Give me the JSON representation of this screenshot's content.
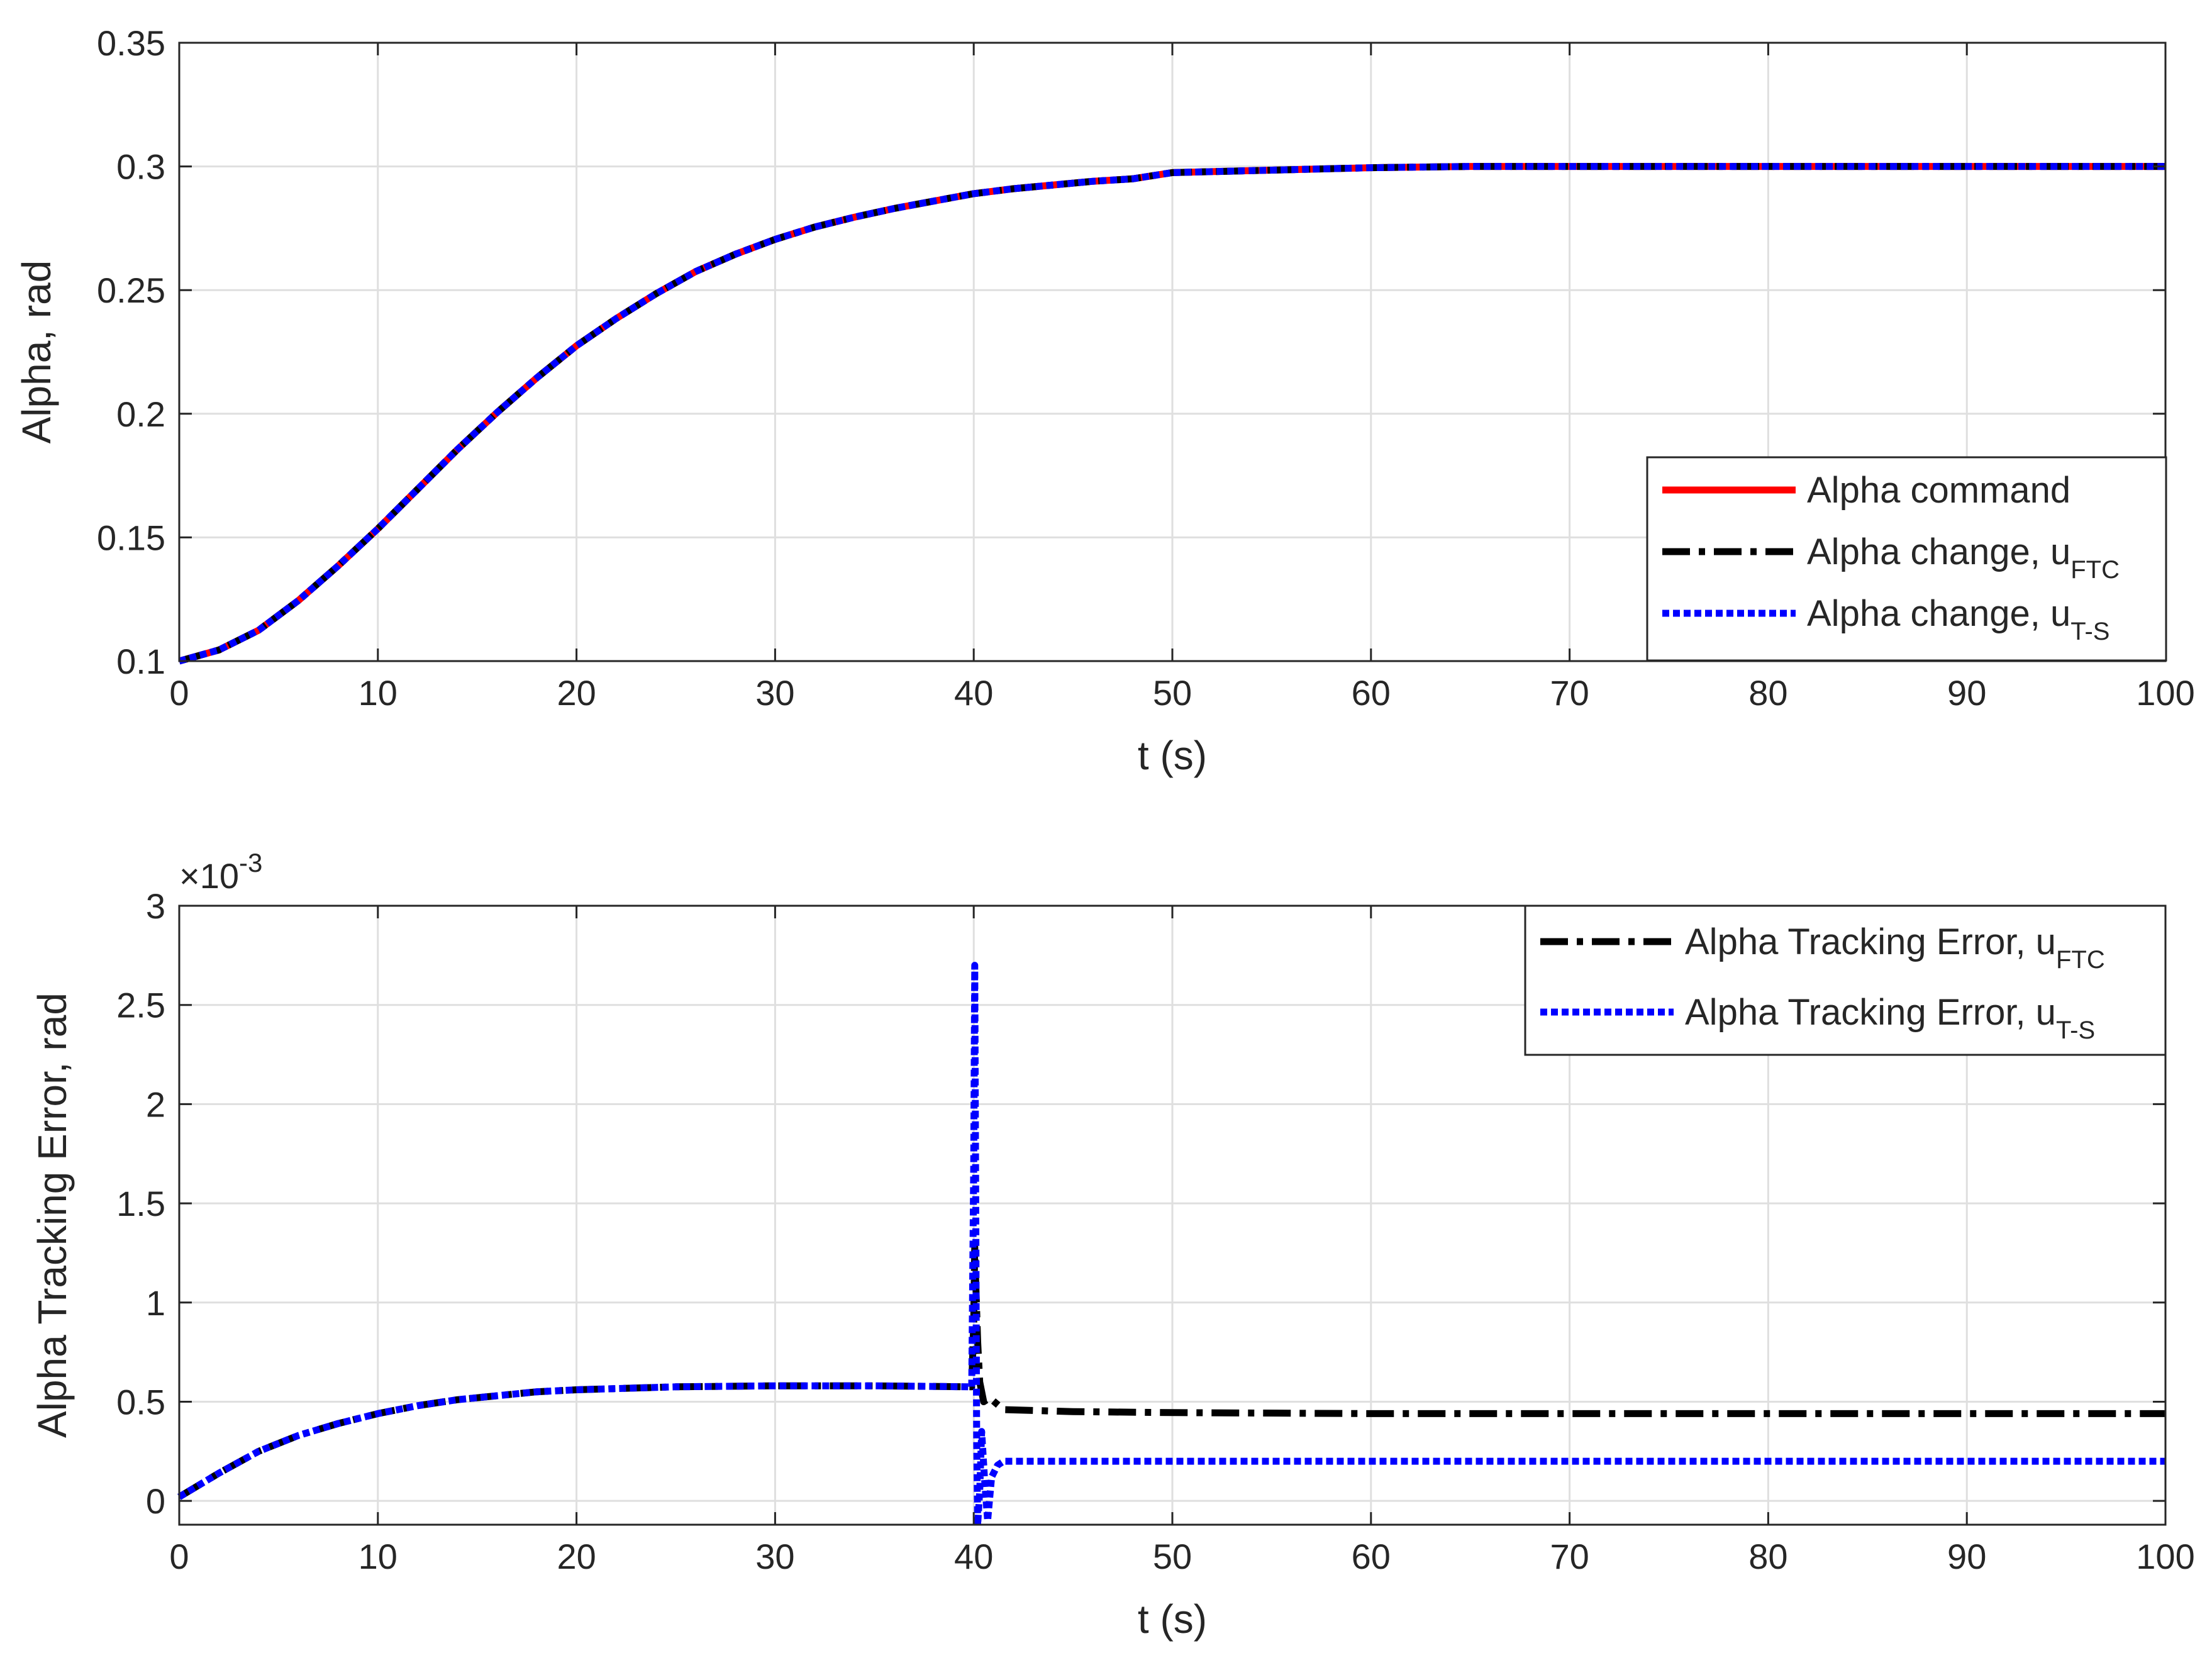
{
  "chart_data": [
    {
      "type": "line",
      "xlabel": "t (s)",
      "ylabel": "Alpha, rad",
      "xlim": [
        0,
        100
      ],
      "ylim": [
        0.1,
        0.35
      ],
      "xticks": [
        "0",
        "10",
        "20",
        "30",
        "40",
        "50",
        "60",
        "70",
        "80",
        "90",
        "100"
      ],
      "yticks": [
        "0.1",
        "0.15",
        "0.2",
        "0.25",
        "0.3",
        "0.35"
      ],
      "grid": true,
      "legend_position": "bottom-right",
      "x": [
        0,
        2,
        4,
        6,
        8,
        10,
        12,
        14,
        16,
        18,
        20,
        22,
        24,
        26,
        28,
        30,
        32,
        34,
        36,
        38,
        40,
        42,
        44,
        46,
        48,
        50,
        55,
        60,
        65,
        70,
        75,
        80,
        85,
        90,
        95,
        100
      ],
      "series": [
        {
          "name": "Alpha command",
          "name_main": "Alpha command",
          "name_sub": "",
          "color": "#ff0000",
          "style": "solid",
          "values": [
            0.1,
            0.1045,
            0.1125,
            0.1245,
            0.1385,
            0.1535,
            0.1695,
            0.1855,
            0.2005,
            0.2145,
            0.2275,
            0.2385,
            0.2485,
            0.2575,
            0.2645,
            0.2705,
            0.2755,
            0.2795,
            0.283,
            0.286,
            0.289,
            0.291,
            0.2925,
            0.294,
            0.295,
            0.2975,
            0.2985,
            0.2995,
            0.3,
            0.3,
            0.3,
            0.3,
            0.3,
            0.3,
            0.3,
            0.3
          ]
        },
        {
          "name": "Alpha change, uFTC",
          "name_main": "Alpha change, u",
          "name_sub": "FTC",
          "color": "#000000",
          "style": "dashdot",
          "values": [
            0.1,
            0.1045,
            0.1125,
            0.1245,
            0.1385,
            0.1535,
            0.1695,
            0.1855,
            0.2005,
            0.2145,
            0.2275,
            0.2385,
            0.2485,
            0.2575,
            0.2645,
            0.2705,
            0.2755,
            0.2795,
            0.283,
            0.286,
            0.289,
            0.291,
            0.2925,
            0.294,
            0.295,
            0.2975,
            0.2985,
            0.2995,
            0.3,
            0.3,
            0.3,
            0.3,
            0.3,
            0.3,
            0.3,
            0.3
          ]
        },
        {
          "name": "Alpha change, uT-S",
          "name_main": "Alpha change, u",
          "name_sub": "T-S",
          "color": "#0000ff",
          "style": "dotted",
          "values": [
            0.1,
            0.1045,
            0.1125,
            0.1245,
            0.1385,
            0.1535,
            0.1695,
            0.1855,
            0.2005,
            0.2145,
            0.2275,
            0.2385,
            0.2485,
            0.2575,
            0.2645,
            0.2705,
            0.2755,
            0.2795,
            0.283,
            0.286,
            0.289,
            0.291,
            0.2925,
            0.294,
            0.295,
            0.2975,
            0.2985,
            0.2995,
            0.3,
            0.3,
            0.3,
            0.3,
            0.3,
            0.3,
            0.3,
            0.3
          ]
        }
      ]
    },
    {
      "type": "line",
      "xlabel": "t (s)",
      "ylabel": "Alpha Tracking Error, rad",
      "xlim": [
        0,
        100
      ],
      "ylim": [
        -0.00012,
        0.003
      ],
      "xticks": [
        "0",
        "10",
        "20",
        "30",
        "40",
        "50",
        "60",
        "70",
        "80",
        "90",
        "100"
      ],
      "yticks": [
        "0",
        "0.5",
        "1",
        "1.5",
        "2",
        "2.5",
        "3"
      ],
      "y_exponent_label": "×10",
      "y_exponent": "-3",
      "grid": true,
      "legend_position": "top-right",
      "series": [
        {
          "name": "Alpha Tracking Error, uFTC",
          "name_main": "Alpha Tracking Error, u",
          "name_sub": "FTC",
          "color": "#000000",
          "style": "dashdot",
          "x": [
            0,
            2,
            4,
            6,
            8,
            10,
            12,
            14,
            16,
            18,
            20,
            25,
            30,
            35,
            39.9,
            40.0,
            40.05,
            40.1,
            40.2,
            40.3,
            40.5,
            40.8,
            41.5,
            45,
            50,
            60,
            70,
            80,
            90,
            100
          ],
          "y": [
            2e-05,
            0.00014,
            0.00025,
            0.00033,
            0.00039,
            0.00044,
            0.00048,
            0.00051,
            0.00053,
            0.00055,
            0.00056,
            0.000575,
            0.00058,
            0.00058,
            0.000575,
            0.0009,
            0.00128,
            0.0011,
            0.0008,
            0.0006,
            0.0005,
            0.00052,
            0.00046,
            0.00045,
            0.000445,
            0.00044,
            0.00044,
            0.00044,
            0.00044,
            0.00044
          ]
        },
        {
          "name": "Alpha Tracking Error, uT-S",
          "name_main": "Alpha Tracking Error, u",
          "name_sub": "T-S",
          "color": "#0000ff",
          "style": "dotted",
          "x": [
            0,
            2,
            4,
            6,
            8,
            10,
            12,
            14,
            16,
            18,
            20,
            25,
            30,
            35,
            39.9,
            40.0,
            40.05,
            40.1,
            40.15,
            40.2,
            40.3,
            40.4,
            40.55,
            40.7,
            40.9,
            41.2,
            41.5,
            45,
            50,
            60,
            70,
            80,
            90,
            100
          ],
          "y": [
            2e-05,
            0.00014,
            0.00025,
            0.00033,
            0.00039,
            0.00044,
            0.00048,
            0.00051,
            0.00053,
            0.00055,
            0.00056,
            0.000575,
            0.00058,
            0.00058,
            0.000575,
            0.0017,
            0.0027,
            0.0015,
            0.0003,
            -0.00012,
            5e-05,
            0.00035,
            0.0001,
            -0.0001,
            0.00012,
            0.00018,
            0.0002,
            0.0002,
            0.0002,
            0.0002,
            0.0002,
            0.0002,
            0.0002,
            0.0002
          ]
        }
      ]
    }
  ]
}
